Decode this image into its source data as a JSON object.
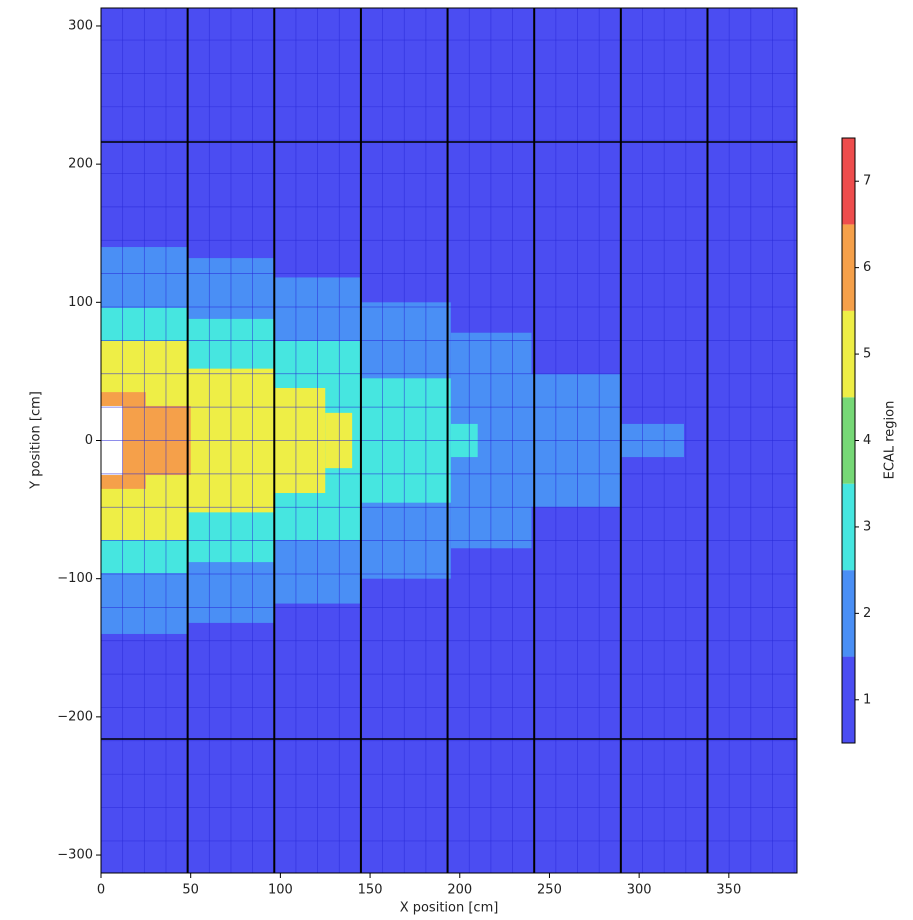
{
  "chart_data": {
    "type": "region_map",
    "xlabel": "X position [cm]",
    "ylabel": "Y position [cm]",
    "xlim": [
      0,
      388
    ],
    "ylim": [
      -313,
      313
    ],
    "xticks": [
      0,
      50,
      100,
      150,
      200,
      250,
      300,
      350
    ],
    "yticks": [
      {
        "value": -300,
        "label": "−300"
      },
      {
        "value": -200,
        "label": "−200"
      },
      {
        "value": -100,
        "label": "−100"
      },
      0,
      100,
      200,
      300
    ],
    "module_boundaries": {
      "x": [
        48.3,
        96.6,
        144.9,
        193.2,
        241.5,
        289.8,
        338.1
      ],
      "y": [
        -216,
        216
      ]
    },
    "cells": [
      [
        0,
        12,
        25,
        313,
        1
      ],
      [
        0,
        12,
        -313,
        -25,
        1
      ],
      [
        12,
        388,
        -313,
        313,
        1
      ],
      [
        0,
        12,
        25,
        140,
        2
      ],
      [
        0,
        12,
        -140,
        -25,
        2
      ],
      [
        12,
        48,
        -140,
        140,
        2
      ],
      [
        48,
        97,
        -132,
        132,
        2
      ],
      [
        97,
        145,
        -118,
        118,
        2
      ],
      [
        145,
        195,
        -100,
        100,
        2
      ],
      [
        195,
        240,
        -78,
        78,
        2
      ],
      [
        240,
        290,
        -48,
        48,
        2
      ],
      [
        290,
        325,
        -12,
        12,
        2
      ],
      [
        0,
        12,
        25,
        96,
        3
      ],
      [
        0,
        12,
        -96,
        -25,
        3
      ],
      [
        12,
        48,
        -96,
        96,
        3
      ],
      [
        48,
        97,
        -88,
        88,
        3
      ],
      [
        97,
        145,
        -72,
        72,
        3
      ],
      [
        145,
        195,
        -45,
        45,
        3
      ],
      [
        195,
        210,
        -12,
        12,
        3
      ],
      [
        0,
        12,
        25,
        72,
        5
      ],
      [
        0,
        12,
        -72,
        -25,
        5
      ],
      [
        12,
        48,
        -72,
        72,
        5
      ],
      [
        48,
        97,
        -52,
        52,
        5
      ],
      [
        97,
        125,
        -38,
        38,
        5
      ],
      [
        125,
        140,
        -20,
        20,
        5
      ],
      [
        0,
        12,
        25,
        35,
        6
      ],
      [
        0,
        12,
        -35,
        -25,
        6
      ],
      [
        12,
        25,
        -35,
        35,
        6
      ],
      [
        25,
        50,
        -25,
        25,
        6
      ]
    ],
    "colorbar": {
      "label": "ECAL region",
      "lim": [
        0.5,
        7.5
      ],
      "ticks": [
        1,
        2,
        3,
        4,
        5,
        6,
        7
      ],
      "colors": [
        "#4b4df2",
        "#4a8ff5",
        "#46e6e0",
        "#76d876",
        "#eeee46",
        "#f5a04a",
        "#ee4d4d"
      ]
    }
  }
}
